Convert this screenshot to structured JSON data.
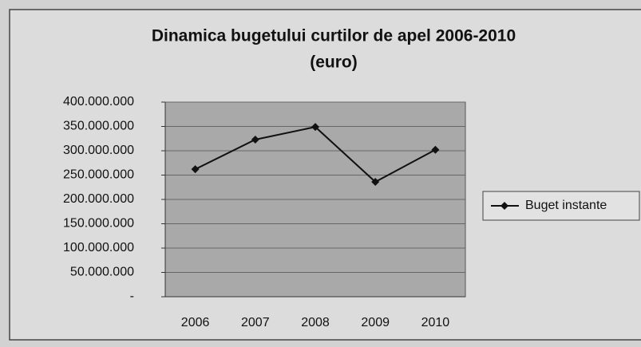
{
  "chart_data": {
    "type": "line",
    "title": "Dinamica bugetului curtilor de apel 2006-2010",
    "subtitle": "(euro)",
    "categories": [
      "2006",
      "2007",
      "2008",
      "2009",
      "2010"
    ],
    "series": [
      {
        "name": "Buget instante",
        "color": "#111111",
        "values": [
          262000000,
          323000000,
          349000000,
          236000000,
          302000000
        ]
      }
    ],
    "ylim": [
      0,
      400000000
    ],
    "yticks": [
      {
        "value": 0,
        "label": "-"
      },
      {
        "value": 50000000,
        "label": "50.000.000"
      },
      {
        "value": 100000000,
        "label": "100.000.000"
      },
      {
        "value": 150000000,
        "label": "150.000.000"
      },
      {
        "value": 200000000,
        "label": "200.000.000"
      },
      {
        "value": 250000000,
        "label": "250.000.000"
      },
      {
        "value": 300000000,
        "label": "300.000.000"
      },
      {
        "value": 350000000,
        "label": "350.000.000"
      },
      {
        "value": 400000000,
        "label": "400.000.000"
      }
    ],
    "grid": true,
    "legend": "right"
  }
}
